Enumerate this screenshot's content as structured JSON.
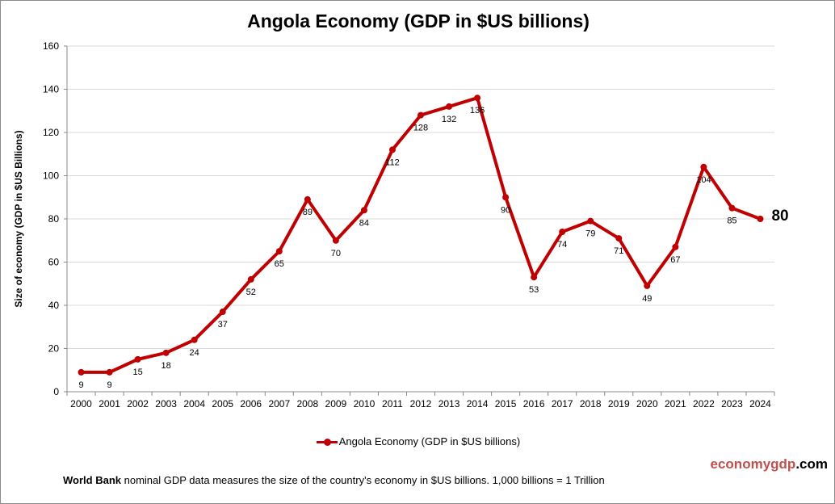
{
  "chart_data": {
    "type": "line",
    "title": "Angola Economy (GDP in $US billions)",
    "ylabel": "Size of economy (GDP in $US Billions)",
    "xlabel": "",
    "ylim": [
      0,
      160
    ],
    "yticks": [
      0,
      20,
      40,
      60,
      80,
      100,
      120,
      140,
      160
    ],
    "grid": true,
    "legend_position": "bottom",
    "categories": [
      "2000",
      "2001",
      "2002",
      "2003",
      "2004",
      "2005",
      "2006",
      "2007",
      "2008",
      "2009",
      "2010",
      "2011",
      "2012",
      "2013",
      "2014",
      "2015",
      "2016",
      "2017",
      "2018",
      "2019",
      "2020",
      "2021",
      "2022",
      "2023",
      "2024"
    ],
    "series": [
      {
        "name": "Angola Economy (GDP in $US billions)",
        "color": "#c00000",
        "values": [
          9,
          9,
          15,
          18,
          24,
          37,
          52,
          65,
          89,
          70,
          84,
          112,
          128,
          132,
          136,
          90,
          53,
          74,
          79,
          71,
          49,
          67,
          104,
          85,
          80
        ]
      }
    ]
  },
  "branding": {
    "part1": "economy",
    "part2": "gdp",
    "part3": ".com"
  },
  "footnote": {
    "bold": "World Bank",
    "text": " nominal GDP data  measures the size of the country's economy in $US billions. 1,000 billions = 1 Trillion"
  }
}
